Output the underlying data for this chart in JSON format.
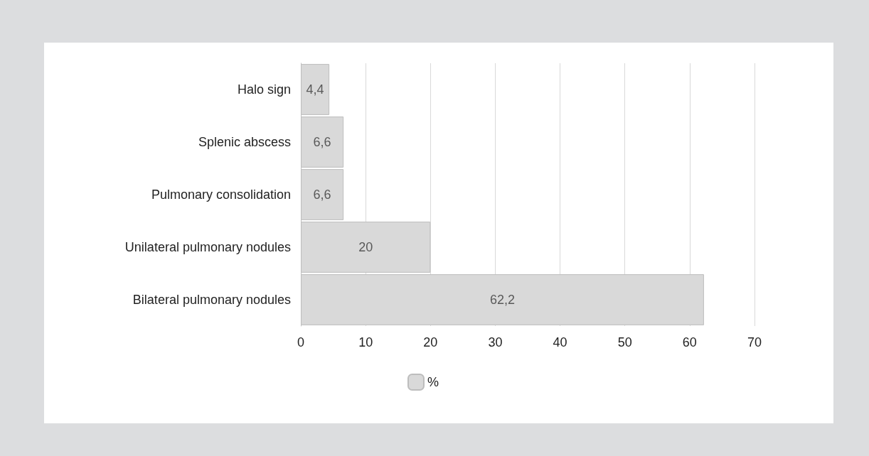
{
  "chart_data": {
    "type": "bar",
    "orientation": "horizontal",
    "categories": [
      "Halo sign",
      "Splenic abscess",
      "Pulmonary consolidation",
      "Unilateral pulmonary nodules",
      "Bilateral pulmonary nodules"
    ],
    "series": [
      {
        "name": "%",
        "color": "#d9d9d9",
        "values": [
          4.4,
          6.6,
          6.6,
          20,
          62.2
        ],
        "value_labels": [
          "4,4",
          "6,6",
          "6,6",
          "20",
          "62,2"
        ]
      }
    ],
    "xlim": [
      0,
      70
    ],
    "xticks": [
      0,
      10,
      20,
      30,
      40,
      50,
      60,
      70
    ],
    "grid": "x",
    "legend": "bottom"
  }
}
